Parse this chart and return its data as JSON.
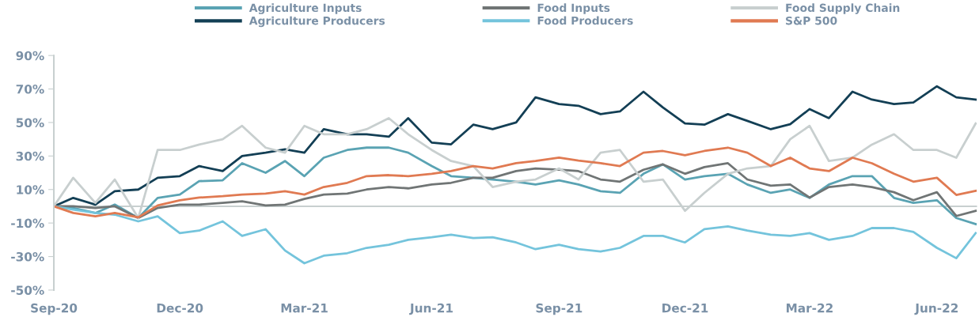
{
  "chart_data": {
    "type": "line",
    "x": [
      "2020-09-01",
      "2020-09-15",
      "2020-10-01",
      "2020-10-15",
      "2020-11-01",
      "2020-11-15",
      "2020-12-01",
      "2020-12-15",
      "2021-01-01",
      "2021-01-15",
      "2021-02-01",
      "2021-02-15",
      "2021-03-01",
      "2021-03-15",
      "2021-04-01",
      "2021-04-15",
      "2021-05-01",
      "2021-05-15",
      "2021-06-01",
      "2021-06-15",
      "2021-07-01",
      "2021-07-15",
      "2021-08-01",
      "2021-08-15",
      "2021-09-01",
      "2021-09-15",
      "2021-10-01",
      "2021-10-15",
      "2021-11-01",
      "2021-11-15",
      "2021-12-01",
      "2021-12-15",
      "2022-01-01",
      "2022-01-15",
      "2022-02-01",
      "2022-02-15",
      "2022-03-01",
      "2022-03-15",
      "2022-04-01",
      "2022-04-15",
      "2022-05-01",
      "2022-05-15",
      "2022-06-01",
      "2022-06-15",
      "2022-06-29"
    ],
    "series": [
      {
        "name": "Agriculture Inputs",
        "color": "#5aa3b3",
        "values": [
          0,
          -1,
          -4,
          1,
          -7,
          5,
          7,
          15,
          15.5,
          25.7,
          20,
          27,
          18,
          29,
          33.6,
          35,
          35,
          32,
          24,
          18,
          17,
          16,
          14.7,
          13,
          15.5,
          13,
          9,
          8,
          19.4,
          25,
          16,
          18,
          19.4,
          13,
          8,
          10,
          5,
          13,
          18,
          18,
          5,
          2,
          3.6,
          -7,
          -10.6
        ]
      },
      {
        "name": "Agriculture Producers",
        "color": "#133f55",
        "values": [
          0,
          5,
          1,
          9,
          10,
          17,
          18,
          24,
          21,
          30,
          32,
          34,
          32,
          46,
          43,
          43,
          41.5,
          52.6,
          38,
          37,
          48.7,
          46,
          50,
          65,
          61,
          60,
          55,
          56.6,
          68.4,
          59,
          49.4,
          48.7,
          55,
          51,
          46,
          49,
          58,
          52.6,
          68.4,
          63.7,
          61,
          62,
          71.6,
          65,
          63.7
        ]
      },
      {
        "name": "Food Inputs",
        "color": "#707575",
        "values": [
          0,
          0,
          -1,
          0,
          -7,
          -1,
          1,
          1,
          2,
          3,
          0.5,
          1,
          4.4,
          7,
          7.6,
          10,
          11.5,
          10.7,
          13,
          14,
          17,
          17,
          21,
          22.6,
          21.8,
          21,
          16,
          14.7,
          21.8,
          25,
          19.4,
          23.4,
          25.7,
          16,
          12.3,
          13,
          5.2,
          11.5,
          13,
          11.5,
          8.4,
          3.6,
          8.4,
          -5.8,
          -2.7
        ]
      },
      {
        "name": "Food Producers",
        "color": "#74c4dc",
        "values": [
          0,
          -2,
          -4,
          -5,
          -9,
          -6,
          -16,
          -14.5,
          -9,
          -17.7,
          -13.7,
          -26.4,
          -34,
          -29.5,
          -28,
          -24.8,
          -23,
          -20,
          -18.5,
          -17,
          -19,
          -18.5,
          -21.6,
          -25.6,
          -23,
          -25.6,
          -27,
          -24.8,
          -17.7,
          -17.7,
          -21.6,
          -13.7,
          -12,
          -14.5,
          -17,
          -17.7,
          -16,
          -20,
          -17.7,
          -13,
          -13,
          -15.3,
          -24.8,
          -31,
          -16
        ]
      },
      {
        "name": "Food Supply Chain",
        "color": "#c8cfcf",
        "values": [
          0,
          17,
          2,
          16,
          -7,
          33.6,
          33.6,
          36.8,
          40,
          48,
          35,
          32,
          48,
          43,
          43,
          46,
          52.6,
          43,
          33.6,
          27,
          24,
          11.5,
          14.7,
          16,
          22.6,
          16,
          32,
          33.6,
          14.7,
          16,
          -2.7,
          8,
          19.4,
          22.6,
          24,
          40,
          48,
          27,
          29,
          36.8,
          43,
          33.6,
          33.6,
          29,
          49.4
        ]
      },
      {
        "name": "S&P 500",
        "color": "#e07a52",
        "values": [
          0,
          -4,
          -6,
          -4,
          -6.6,
          0.5,
          3.6,
          5.2,
          6,
          7,
          7.6,
          9,
          7,
          11.5,
          14,
          18,
          18.6,
          18,
          19.4,
          21,
          24,
          22.6,
          25.7,
          27,
          29,
          27.3,
          25.7,
          24,
          32,
          33,
          30.5,
          33,
          35,
          32,
          24,
          29,
          22.6,
          21,
          29,
          25.7,
          19.4,
          14.7,
          17,
          6.8,
          9.2
        ]
      }
    ],
    "xlim": [
      "2020-09-01",
      "2022-06-30"
    ],
    "xticks": [
      {
        "value": "2020-09-01",
        "label": "Sep-20"
      },
      {
        "value": "2020-12-01",
        "label": "Dec-20"
      },
      {
        "value": "2021-03-01",
        "label": "Mar-21"
      },
      {
        "value": "2021-06-01",
        "label": "Jun-21"
      },
      {
        "value": "2021-09-01",
        "label": "Sep-21"
      },
      {
        "value": "2021-12-01",
        "label": "Dec-21"
      },
      {
        "value": "2022-03-01",
        "label": "Mar-22"
      },
      {
        "value": "2022-06-01",
        "label": "Jun-22"
      }
    ],
    "ylim": [
      -50,
      90
    ],
    "yticks": [
      {
        "value": -50,
        "label": "-50%"
      },
      {
        "value": -30,
        "label": "-30%"
      },
      {
        "value": -10,
        "label": "-10%"
      },
      {
        "value": 10,
        "label": "10%"
      },
      {
        "value": 30,
        "label": "30%"
      },
      {
        "value": 50,
        "label": "50%"
      },
      {
        "value": 70,
        "label": "70%"
      },
      {
        "value": 90,
        "label": "90%"
      }
    ],
    "ref_lines": [
      {
        "axis": "y",
        "value": 0,
        "color": "#c8d0d0"
      }
    ],
    "legend": "top",
    "grid": false,
    "marker": "none",
    "line_style": "solid"
  }
}
